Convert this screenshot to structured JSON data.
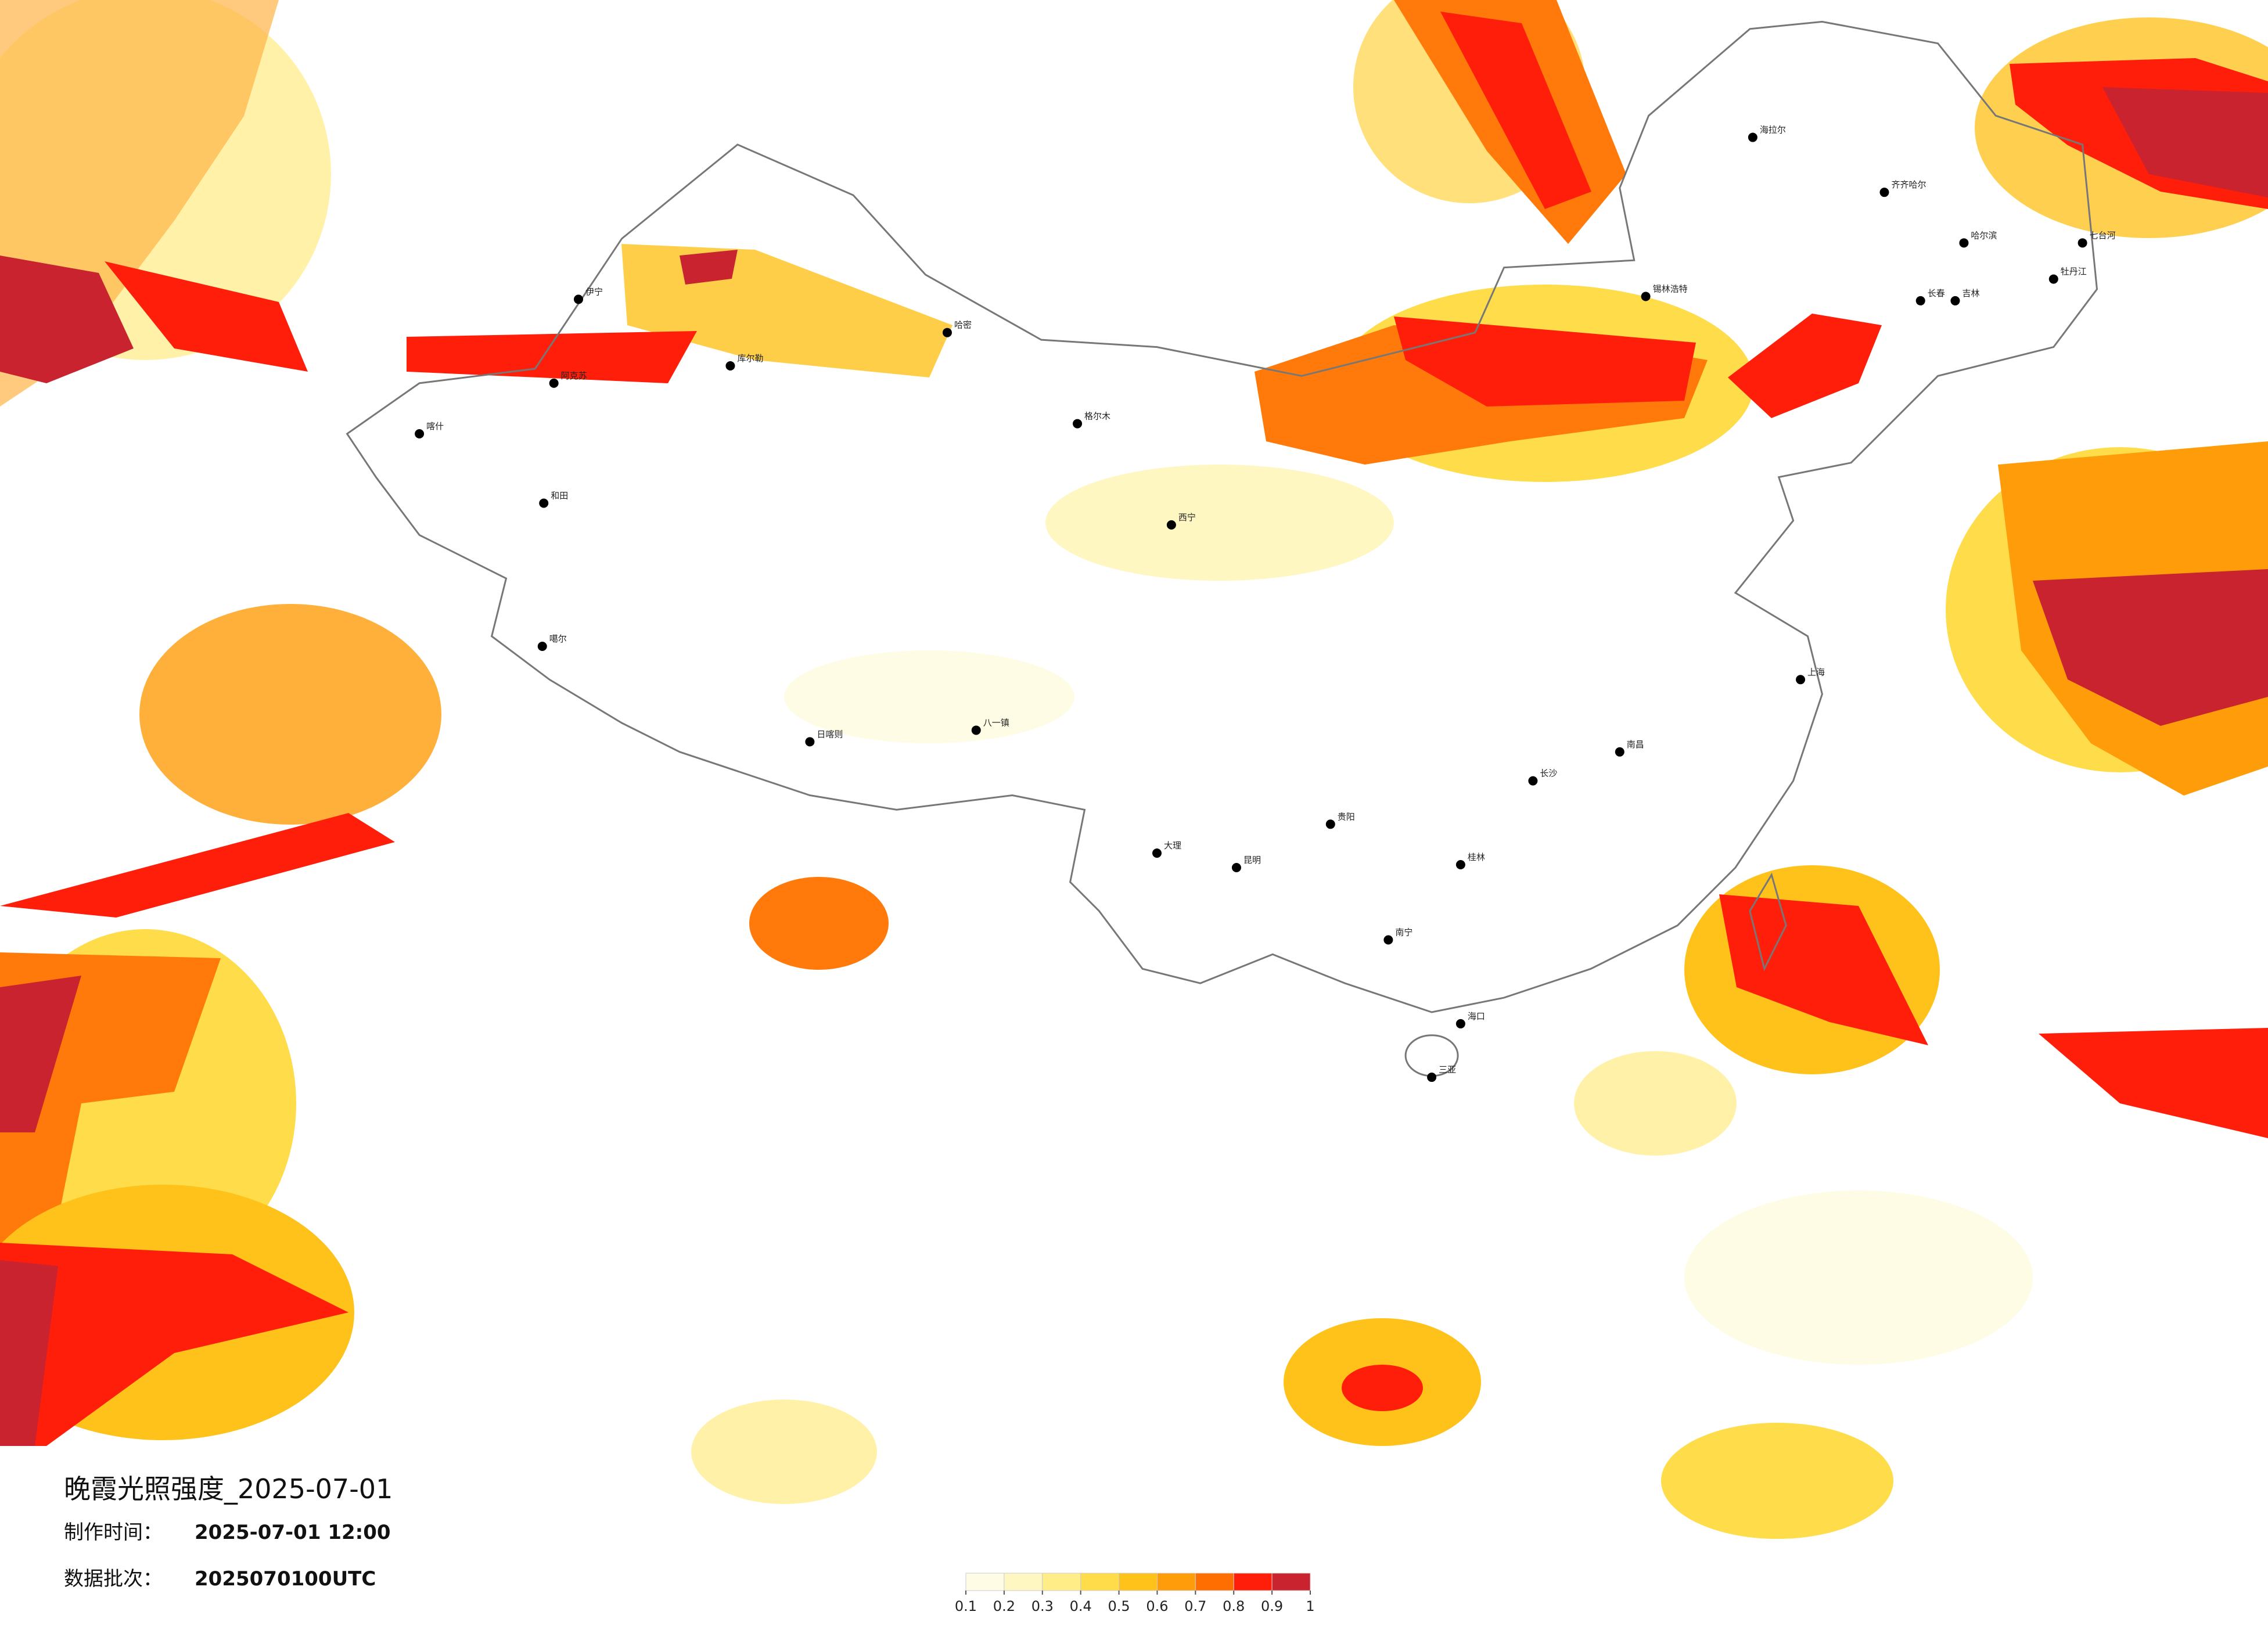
{
  "header": {
    "title": "晚霞光照强度_2025-07-01",
    "made_label": "制作时间：",
    "made_value": "2025-07-01 12:00",
    "batch_label": "数据批次：",
    "batch_value": "2025070100UTC"
  },
  "map": {
    "cities": [
      "海拉尔",
      "齐齐哈尔",
      "哈尔滨",
      "长春",
      "吉林",
      "牡丹江",
      "七台河",
      "锡林浩特",
      "伊宁",
      "阿克苏",
      "喀什",
      "和田",
      "库尔勒",
      "哈密",
      "格尔木",
      "噶尔",
      "日喀则",
      "八一镇",
      "西宁",
      "大理",
      "昆明",
      "贵阳",
      "桂林",
      "南宁",
      "海口",
      "三亚",
      "上海",
      "长沙",
      "南昌"
    ]
  },
  "colorbar": {
    "ticks": [
      0.1,
      0.2,
      0.3,
      0.4,
      0.5,
      0.6,
      0.7,
      0.8,
      0.9,
      1
    ],
    "colors": [
      "#fffce6",
      "#fff7c2",
      "#ffee88",
      "#ffdc4a",
      "#ffc21a",
      "#ff9c0a",
      "#ff6e00",
      "#ff1e0a",
      "#c8232e"
    ]
  }
}
